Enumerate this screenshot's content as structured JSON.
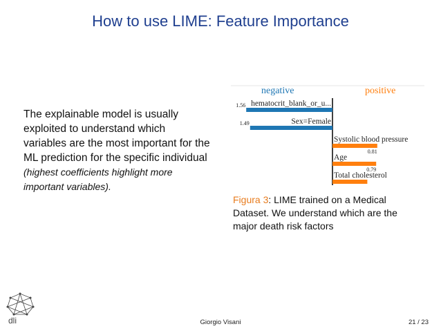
{
  "slide": {
    "title": "How to use LIME: Feature Importance",
    "body_main": "The explainable model is usually exploited to understand which variables are the most important for the ML prediction for the specific individual",
    "body_note": "(highest coefficients highlight more important variables).",
    "caption_label": "Figura 3",
    "caption_text": ": LIME trained on a Medical Dataset. We understand which are the major death risk factors",
    "footer_author": "Giorgio Visani",
    "footer_page": "21 / 23",
    "logo_text": "dli"
  },
  "colors": {
    "title": "#1f3f8f",
    "negative": "#1f77b4",
    "positive": "#ff7f0e",
    "caption_accent": "#e87c1e"
  },
  "chart_data": {
    "type": "bar",
    "orientation": "horizontal",
    "legend": [
      "negative",
      "positive"
    ],
    "categories": [
      "hematocrit_blank_or_u...",
      "Sex=Female",
      "Systolic blood pressure",
      "Age",
      "Total cholesterol"
    ],
    "values": [
      -1.56,
      -1.49,
      0.81,
      0.79,
      0.63
    ],
    "value_labels": [
      "1.56",
      "1.49",
      "0.81",
      "0.79",
      "0.63"
    ]
  }
}
